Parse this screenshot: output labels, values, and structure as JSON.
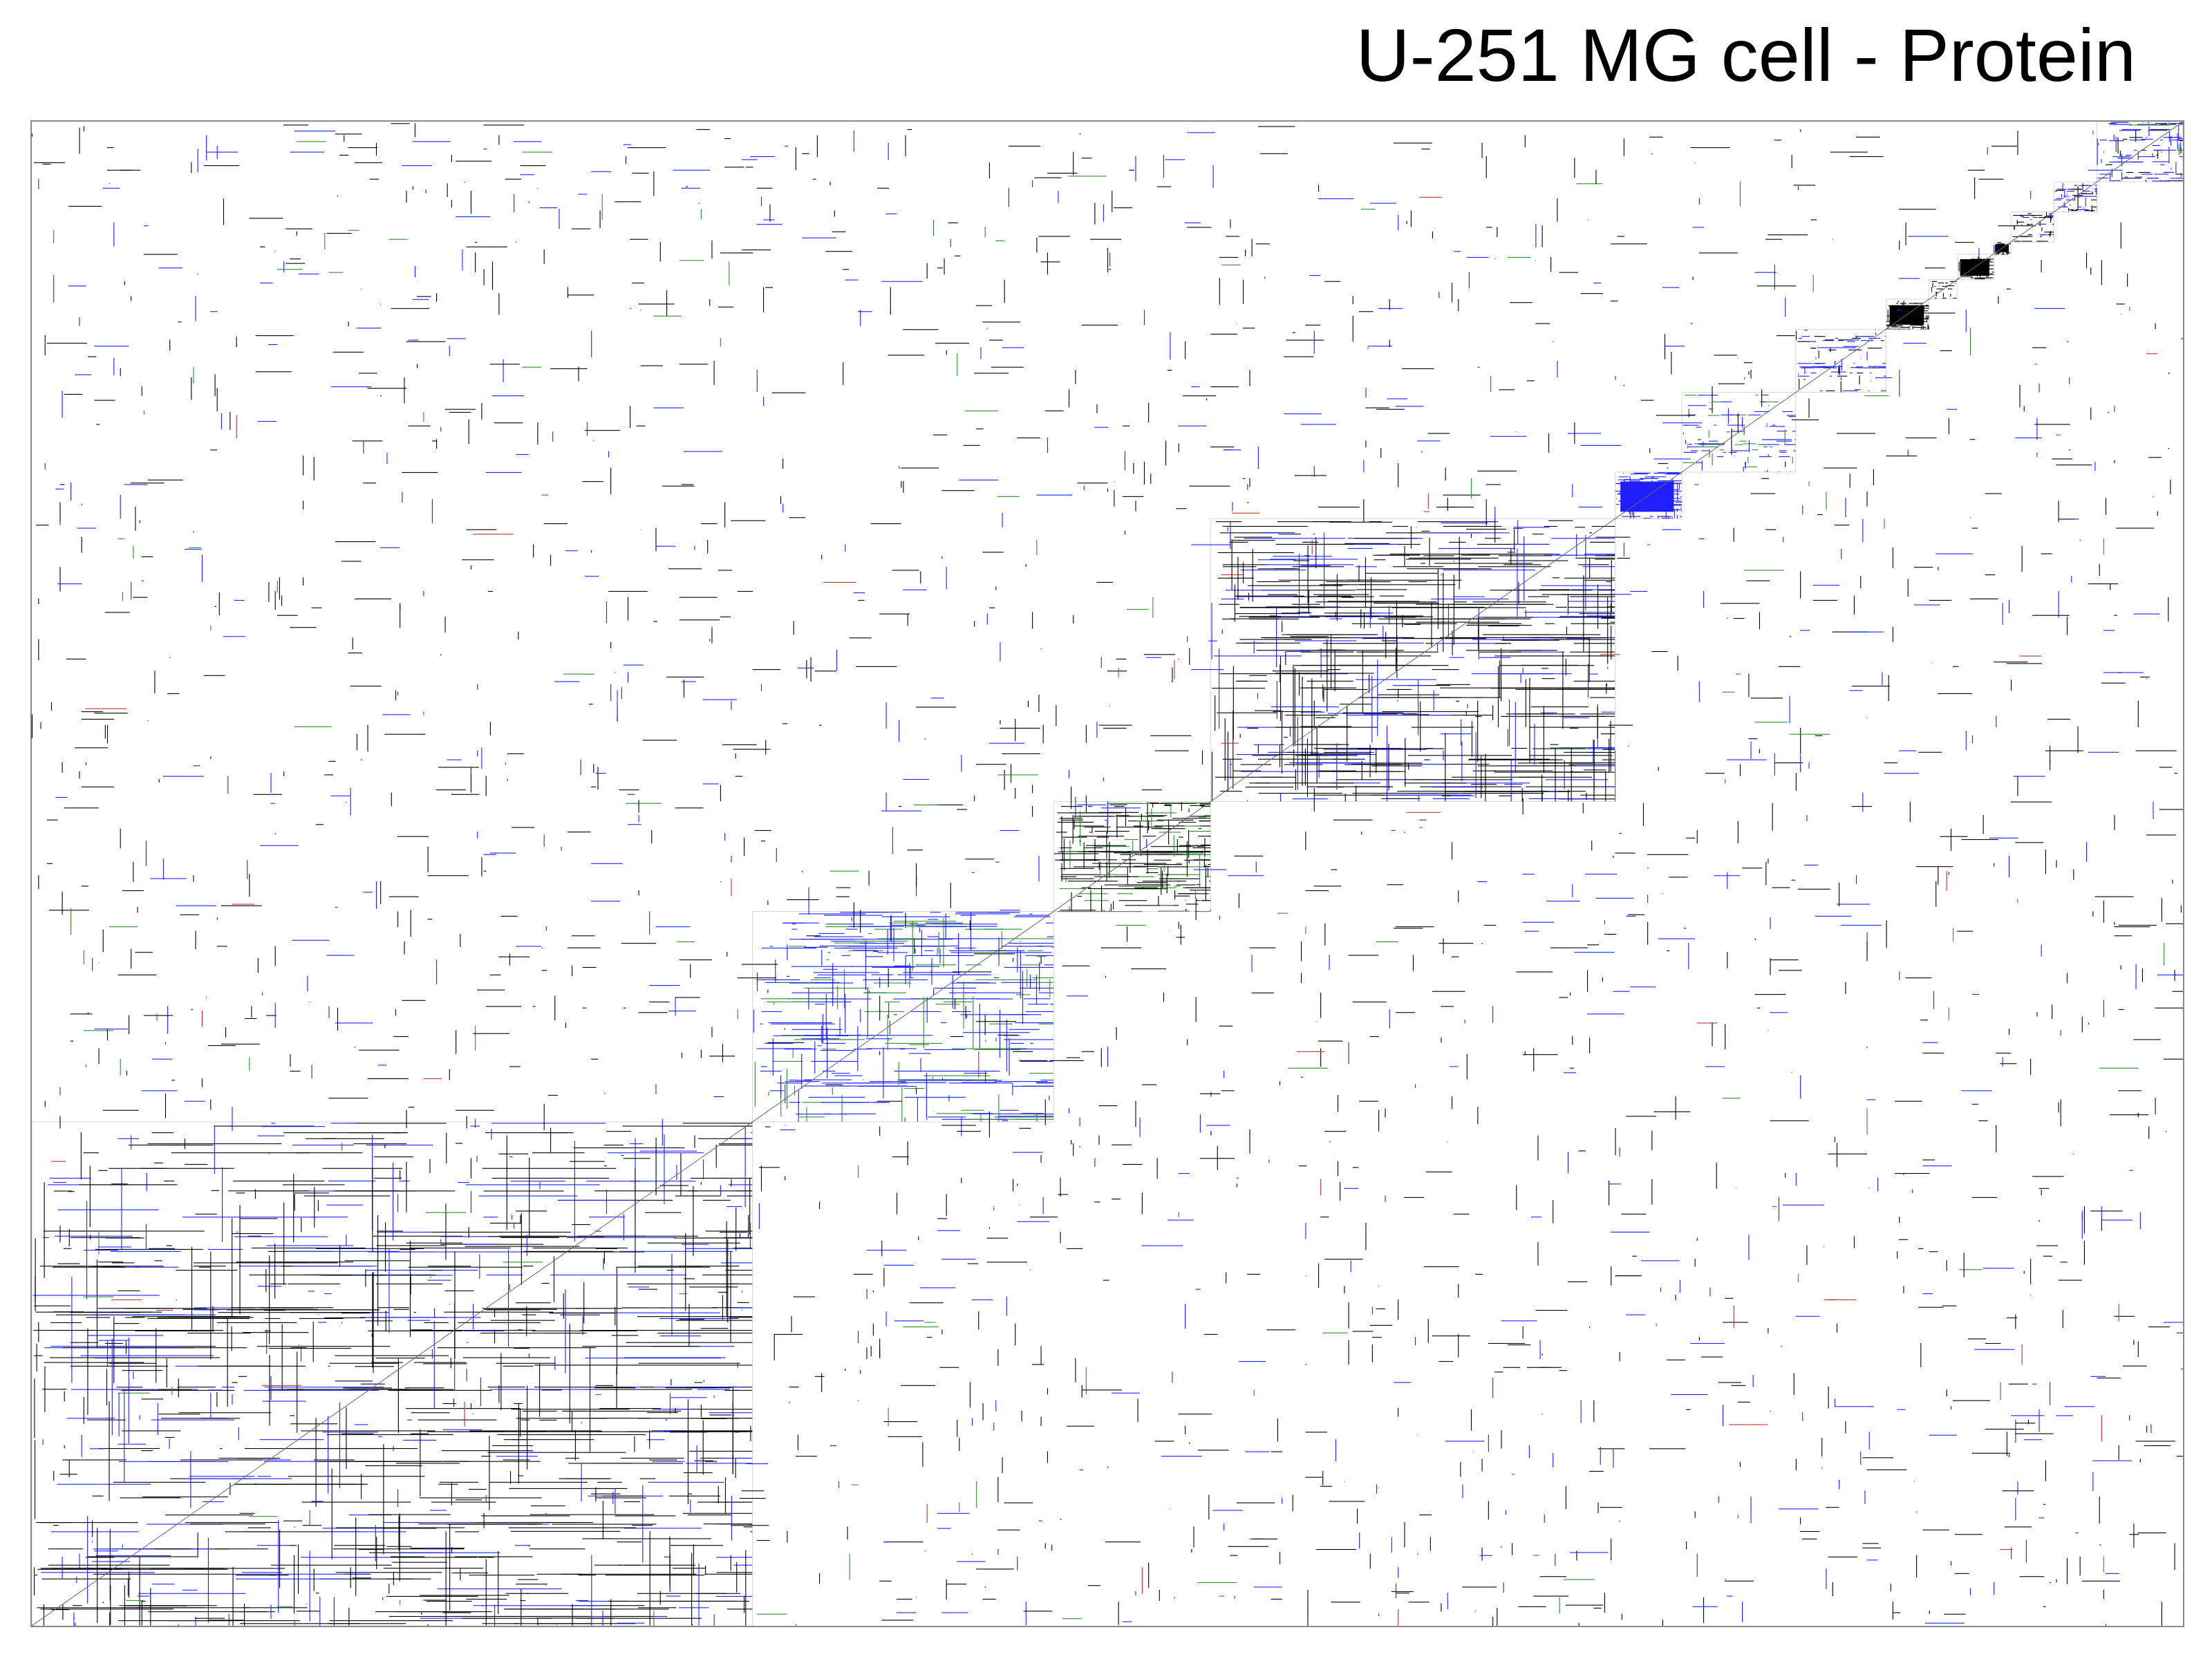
{
  "chart_data": {
    "type": "heatmap",
    "title": "U-251 MG cell - Protein",
    "xlabel": "",
    "ylabel": "",
    "grid": false,
    "legend": "none",
    "colors": {
      "black": "#000000",
      "blue": "#1f1fff",
      "green": "#2e8b2e",
      "red": "#c03030",
      "frame": "#888888"
    },
    "matrix_size": 1000,
    "clusters": [
      {
        "start": 0,
        "end": 335,
        "color": "black",
        "density": 0.55,
        "dark_color": "blue"
      },
      {
        "start": 335,
        "end": 475,
        "color": "blue",
        "density": 0.65,
        "dark_color": "green"
      },
      {
        "start": 475,
        "end": 548,
        "color": "black",
        "density": 0.85,
        "dark_color": "green"
      },
      {
        "start": 548,
        "end": 736,
        "color": "black",
        "density": 0.75,
        "dark_color": "blue"
      },
      {
        "start": 736,
        "end": 767,
        "color": "blue",
        "density": 0.95,
        "dark_color": "blue"
      },
      {
        "start": 767,
        "end": 820,
        "color": "blue",
        "density": 0.5,
        "dark_color": "green"
      },
      {
        "start": 820,
        "end": 862,
        "color": "blue",
        "density": 0.5,
        "dark_color": "black"
      },
      {
        "start": 862,
        "end": 882,
        "color": "black",
        "density": 0.98,
        "dark_color": "black"
      },
      {
        "start": 882,
        "end": 895,
        "color": "black",
        "density": 0.6,
        "dark_color": "blue"
      },
      {
        "start": 895,
        "end": 912,
        "color": "black",
        "density": 0.98,
        "dark_color": "black"
      },
      {
        "start": 912,
        "end": 920,
        "color": "black",
        "density": 0.9,
        "dark_color": "black"
      },
      {
        "start": 920,
        "end": 940,
        "color": "black",
        "density": 0.7,
        "dark_color": "blue"
      },
      {
        "start": 940,
        "end": 960,
        "color": "blue",
        "density": 0.8,
        "dark_color": "black"
      },
      {
        "start": 960,
        "end": 1000,
        "color": "blue",
        "density": 0.7,
        "dark_color": "black"
      }
    ],
    "diagonal": true
  }
}
